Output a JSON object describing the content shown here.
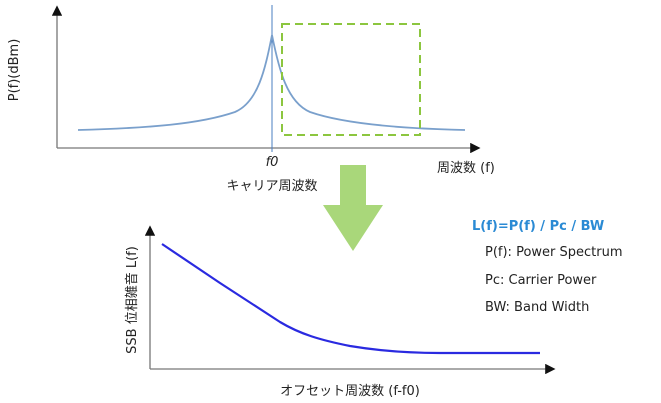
{
  "top_chart": {
    "y_label": "P(f)(dBm)",
    "x_label": "周波数 (f)",
    "center_tick": "f0",
    "center_caption": "キャリア周波数",
    "curve_color": "#7aa0cc",
    "center_line_color": "#4a7fc1",
    "highlight_box_color": "#8cc63f"
  },
  "arrow": {
    "color": "#a9d77a",
    "direction": "down"
  },
  "bottom_chart": {
    "y_label": "SSB 位相雑音 L(f)",
    "x_label": "オフセット周波数 (f-f0)",
    "curve_color": "#2a2ae0"
  },
  "legend": {
    "formula": "L(f)=P(f) / Pc / BW",
    "formula_color": "#2a8ad4",
    "definitions": [
      "P(f): Power Spectrum",
      "Pc: Carrier Power",
      "BW: Band Width"
    ]
  }
}
